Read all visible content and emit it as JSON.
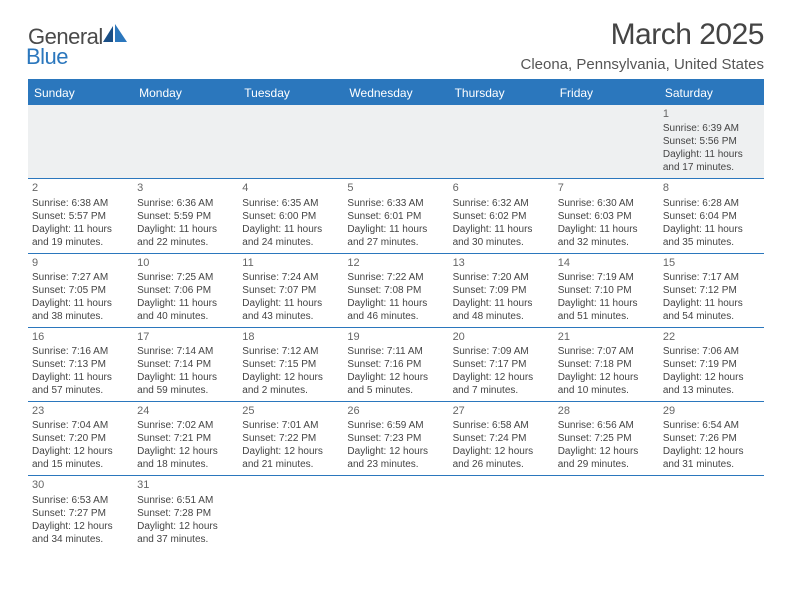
{
  "logo": {
    "text1": "General",
    "text2": "Blue"
  },
  "title": "March 2025",
  "subtitle": "Cleona, Pennsylvania, United States",
  "colors": {
    "header_bg": "#2b77bd",
    "header_text": "#ffffff",
    "border": "#2b77bd",
    "blank_bg": "#eef0f1",
    "body_text": "#444"
  },
  "day_headers": [
    "Sunday",
    "Monday",
    "Tuesday",
    "Wednesday",
    "Thursday",
    "Friday",
    "Saturday"
  ],
  "weeks": [
    [
      null,
      null,
      null,
      null,
      null,
      null,
      {
        "n": "1",
        "sr": "Sunrise: 6:39 AM",
        "ss": "Sunset: 5:56 PM",
        "d1": "Daylight: 11 hours",
        "d2": "and 17 minutes."
      }
    ],
    [
      {
        "n": "2",
        "sr": "Sunrise: 6:38 AM",
        "ss": "Sunset: 5:57 PM",
        "d1": "Daylight: 11 hours",
        "d2": "and 19 minutes."
      },
      {
        "n": "3",
        "sr": "Sunrise: 6:36 AM",
        "ss": "Sunset: 5:59 PM",
        "d1": "Daylight: 11 hours",
        "d2": "and 22 minutes."
      },
      {
        "n": "4",
        "sr": "Sunrise: 6:35 AM",
        "ss": "Sunset: 6:00 PM",
        "d1": "Daylight: 11 hours",
        "d2": "and 24 minutes."
      },
      {
        "n": "5",
        "sr": "Sunrise: 6:33 AM",
        "ss": "Sunset: 6:01 PM",
        "d1": "Daylight: 11 hours",
        "d2": "and 27 minutes."
      },
      {
        "n": "6",
        "sr": "Sunrise: 6:32 AM",
        "ss": "Sunset: 6:02 PM",
        "d1": "Daylight: 11 hours",
        "d2": "and 30 minutes."
      },
      {
        "n": "7",
        "sr": "Sunrise: 6:30 AM",
        "ss": "Sunset: 6:03 PM",
        "d1": "Daylight: 11 hours",
        "d2": "and 32 minutes."
      },
      {
        "n": "8",
        "sr": "Sunrise: 6:28 AM",
        "ss": "Sunset: 6:04 PM",
        "d1": "Daylight: 11 hours",
        "d2": "and 35 minutes."
      }
    ],
    [
      {
        "n": "9",
        "sr": "Sunrise: 7:27 AM",
        "ss": "Sunset: 7:05 PM",
        "d1": "Daylight: 11 hours",
        "d2": "and 38 minutes."
      },
      {
        "n": "10",
        "sr": "Sunrise: 7:25 AM",
        "ss": "Sunset: 7:06 PM",
        "d1": "Daylight: 11 hours",
        "d2": "and 40 minutes."
      },
      {
        "n": "11",
        "sr": "Sunrise: 7:24 AM",
        "ss": "Sunset: 7:07 PM",
        "d1": "Daylight: 11 hours",
        "d2": "and 43 minutes."
      },
      {
        "n": "12",
        "sr": "Sunrise: 7:22 AM",
        "ss": "Sunset: 7:08 PM",
        "d1": "Daylight: 11 hours",
        "d2": "and 46 minutes."
      },
      {
        "n": "13",
        "sr": "Sunrise: 7:20 AM",
        "ss": "Sunset: 7:09 PM",
        "d1": "Daylight: 11 hours",
        "d2": "and 48 minutes."
      },
      {
        "n": "14",
        "sr": "Sunrise: 7:19 AM",
        "ss": "Sunset: 7:10 PM",
        "d1": "Daylight: 11 hours",
        "d2": "and 51 minutes."
      },
      {
        "n": "15",
        "sr": "Sunrise: 7:17 AM",
        "ss": "Sunset: 7:12 PM",
        "d1": "Daylight: 11 hours",
        "d2": "and 54 minutes."
      }
    ],
    [
      {
        "n": "16",
        "sr": "Sunrise: 7:16 AM",
        "ss": "Sunset: 7:13 PM",
        "d1": "Daylight: 11 hours",
        "d2": "and 57 minutes."
      },
      {
        "n": "17",
        "sr": "Sunrise: 7:14 AM",
        "ss": "Sunset: 7:14 PM",
        "d1": "Daylight: 11 hours",
        "d2": "and 59 minutes."
      },
      {
        "n": "18",
        "sr": "Sunrise: 7:12 AM",
        "ss": "Sunset: 7:15 PM",
        "d1": "Daylight: 12 hours",
        "d2": "and 2 minutes."
      },
      {
        "n": "19",
        "sr": "Sunrise: 7:11 AM",
        "ss": "Sunset: 7:16 PM",
        "d1": "Daylight: 12 hours",
        "d2": "and 5 minutes."
      },
      {
        "n": "20",
        "sr": "Sunrise: 7:09 AM",
        "ss": "Sunset: 7:17 PM",
        "d1": "Daylight: 12 hours",
        "d2": "and 7 minutes."
      },
      {
        "n": "21",
        "sr": "Sunrise: 7:07 AM",
        "ss": "Sunset: 7:18 PM",
        "d1": "Daylight: 12 hours",
        "d2": "and 10 minutes."
      },
      {
        "n": "22",
        "sr": "Sunrise: 7:06 AM",
        "ss": "Sunset: 7:19 PM",
        "d1": "Daylight: 12 hours",
        "d2": "and 13 minutes."
      }
    ],
    [
      {
        "n": "23",
        "sr": "Sunrise: 7:04 AM",
        "ss": "Sunset: 7:20 PM",
        "d1": "Daylight: 12 hours",
        "d2": "and 15 minutes."
      },
      {
        "n": "24",
        "sr": "Sunrise: 7:02 AM",
        "ss": "Sunset: 7:21 PM",
        "d1": "Daylight: 12 hours",
        "d2": "and 18 minutes."
      },
      {
        "n": "25",
        "sr": "Sunrise: 7:01 AM",
        "ss": "Sunset: 7:22 PM",
        "d1": "Daylight: 12 hours",
        "d2": "and 21 minutes."
      },
      {
        "n": "26",
        "sr": "Sunrise: 6:59 AM",
        "ss": "Sunset: 7:23 PM",
        "d1": "Daylight: 12 hours",
        "d2": "and 23 minutes."
      },
      {
        "n": "27",
        "sr": "Sunrise: 6:58 AM",
        "ss": "Sunset: 7:24 PM",
        "d1": "Daylight: 12 hours",
        "d2": "and 26 minutes."
      },
      {
        "n": "28",
        "sr": "Sunrise: 6:56 AM",
        "ss": "Sunset: 7:25 PM",
        "d1": "Daylight: 12 hours",
        "d2": "and 29 minutes."
      },
      {
        "n": "29",
        "sr": "Sunrise: 6:54 AM",
        "ss": "Sunset: 7:26 PM",
        "d1": "Daylight: 12 hours",
        "d2": "and 31 minutes."
      }
    ],
    [
      {
        "n": "30",
        "sr": "Sunrise: 6:53 AM",
        "ss": "Sunset: 7:27 PM",
        "d1": "Daylight: 12 hours",
        "d2": "and 34 minutes."
      },
      {
        "n": "31",
        "sr": "Sunrise: 6:51 AM",
        "ss": "Sunset: 7:28 PM",
        "d1": "Daylight: 12 hours",
        "d2": "and 37 minutes."
      },
      null,
      null,
      null,
      null,
      null
    ]
  ]
}
